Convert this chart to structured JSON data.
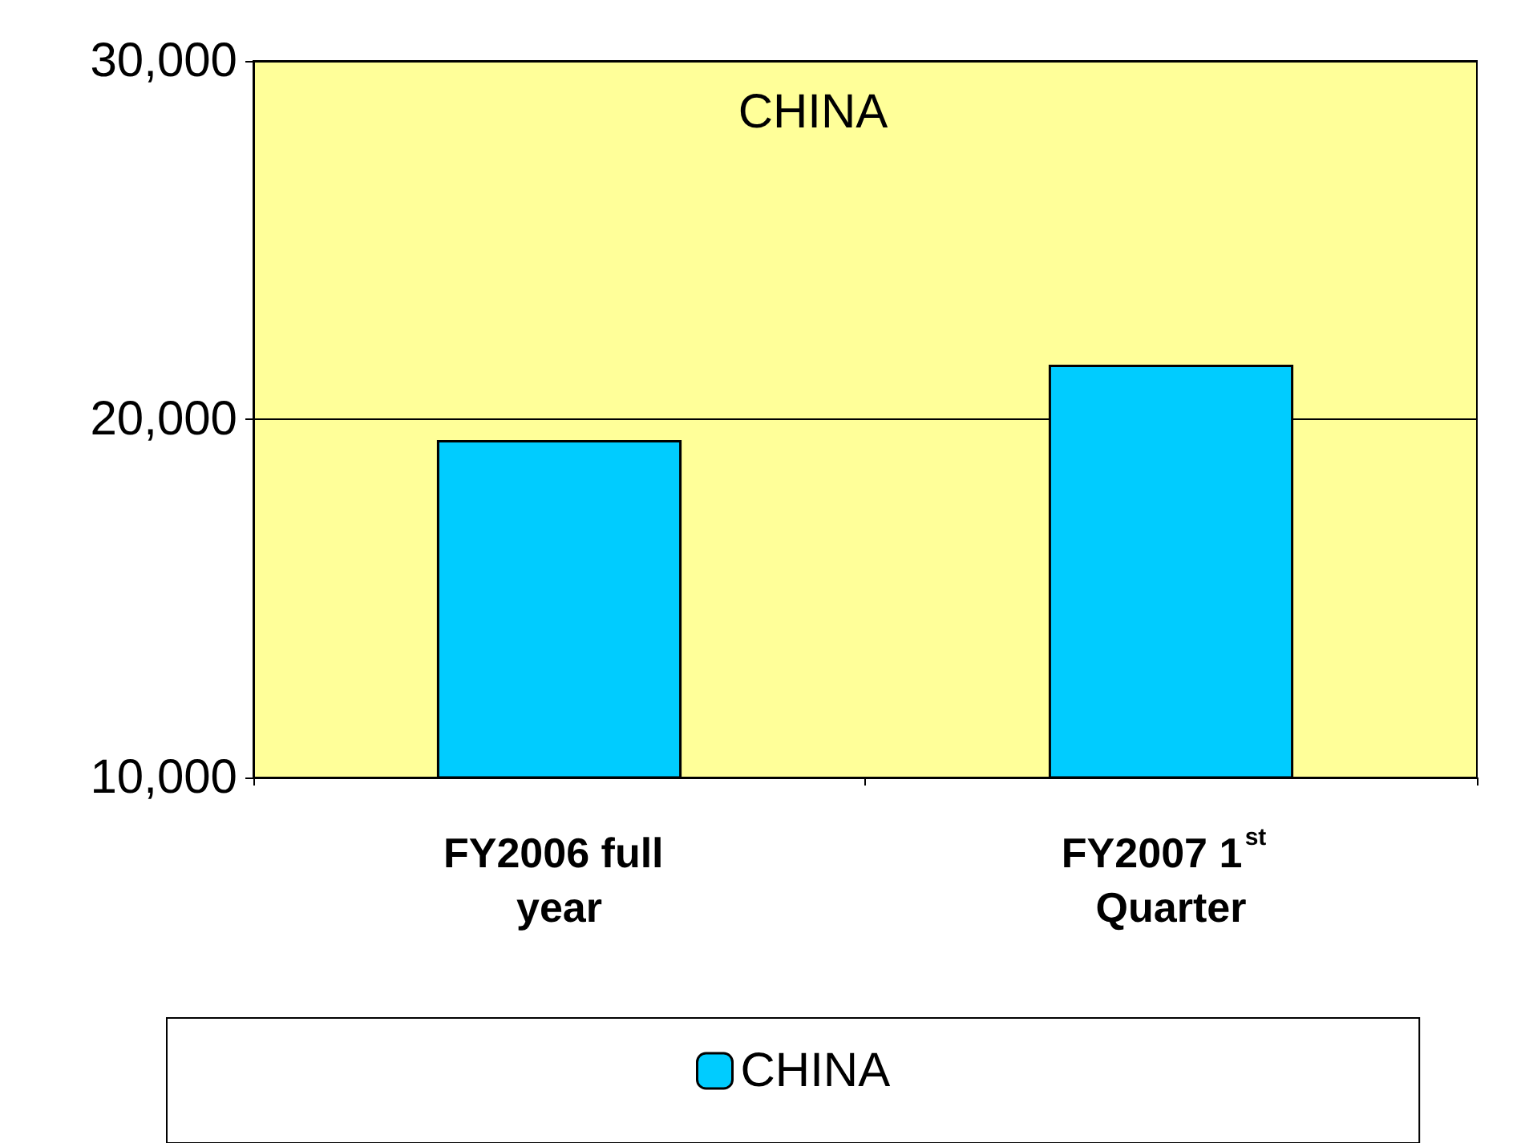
{
  "chart_data": {
    "type": "bar",
    "title": "CHINA",
    "categories": [
      "FY2006 full year",
      "FY2007 1$^{st}$ Quarter"
    ],
    "series": [
      {
        "name": "CHINA",
        "color": "#00ccff",
        "values": [
          19420,
          21520
        ]
      }
    ],
    "ylim": [
      10000,
      30000
    ],
    "yticks": [
      {
        "value": 10000,
        "label": "10,000"
      },
      {
        "value": 20000,
        "label": "20,000"
      },
      {
        "value": 30000,
        "label": "30,000"
      }
    ],
    "grid": "y",
    "legend": "bottom"
  }
}
